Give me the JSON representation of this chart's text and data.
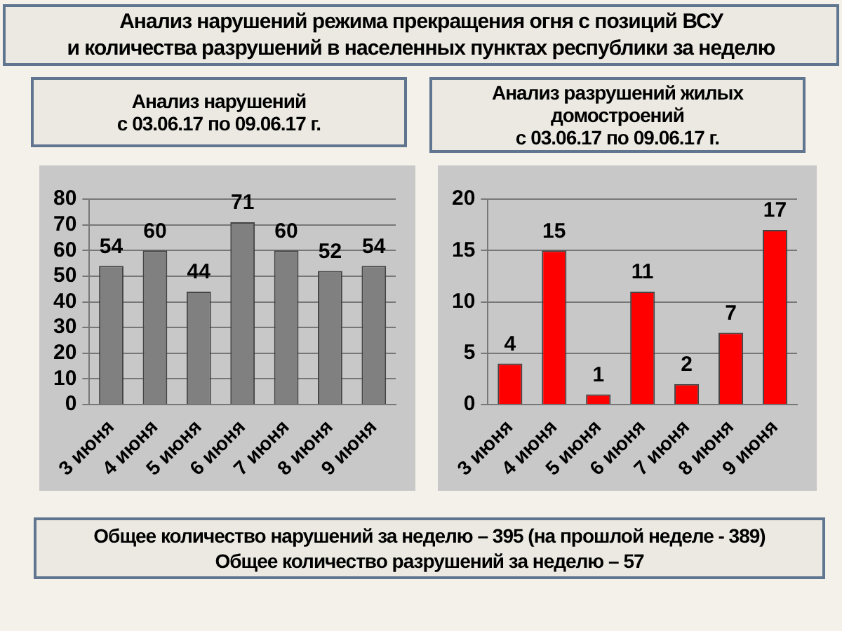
{
  "chart_data": [
    {
      "type": "other",
      "title": "Анализ нарушений режима прекращения огня с позиций ВСУ\nи количества разрушений в населенных пунктах республики за неделю"
    },
    {
      "type": "bar",
      "title": "Анализ нарушений\nс 03.06.17 по 09.06.17 г.",
      "categories": [
        "3 июня",
        "4 июня",
        "5 июня",
        "6 июня",
        "7 июня",
        "8 июня",
        "9 июня"
      ],
      "values": [
        54,
        60,
        44,
        71,
        60,
        52,
        54
      ],
      "color": "#808080",
      "ylim": [
        0,
        80
      ],
      "yticks": [
        0,
        10,
        20,
        30,
        40,
        50,
        60,
        70,
        80
      ],
      "grid": "y",
      "data_labels": true
    },
    {
      "type": "bar",
      "title": "Анализ разрушений жилых\nдомостроений\nс 03.06.17 по 09.06.17 г.",
      "categories": [
        "3 июня",
        "4 июня",
        "5 июня",
        "6 июня",
        "7 июня",
        "8 июня",
        "9 июня"
      ],
      "values": [
        4,
        15,
        1,
        11,
        2,
        7,
        17
      ],
      "color": "#ff0000",
      "ylim": [
        0,
        20
      ],
      "yticks": [
        0,
        5,
        10,
        15,
        20
      ],
      "grid": "y",
      "data_labels": true
    },
    {
      "type": "other",
      "annotations": [
        "Общее количество нарушений за неделю – 395 (на прошлой неделе - 389)",
        "Общее количество разрушений за неделю – 57"
      ]
    }
  ]
}
